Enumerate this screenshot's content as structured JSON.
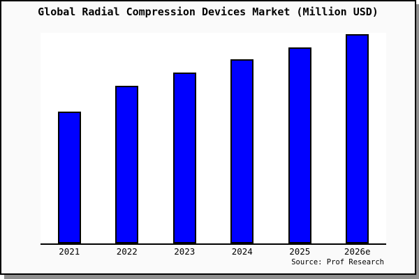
{
  "chart_data": {
    "type": "bar",
    "title": "Global Radial Compression Devices Market (Million USD)",
    "categories": [
      "2021",
      "2022",
      "2023",
      "2024",
      "2025",
      "2026e"
    ],
    "values": [
      62.9,
      75.2,
      81.7,
      88.0,
      93.8,
      100.0
    ],
    "values_note": "No numeric axis is shown in the chart; values are bar heights estimated relative to the tallest bar (2026e = 100).",
    "xlabel": "",
    "ylabel": "",
    "ylim": [
      0,
      101
    ],
    "grid": false,
    "legend": false,
    "bar_color": "#0000ff",
    "bar_border_color": "#000000",
    "source": "Source: Prof Research"
  },
  "colors": {
    "canvas_background": "#fafafa",
    "plot_background": "#ffffff",
    "bar_fill": "#0000ff",
    "bar_border": "#000000",
    "axis_line": "#000000",
    "frame_border": "#000000",
    "drop_shadow": "#8f8f8f",
    "text": "#000000"
  }
}
